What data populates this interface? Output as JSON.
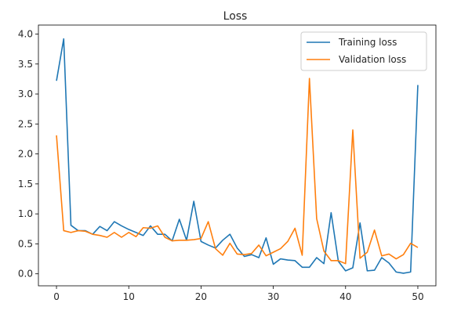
{
  "chart_data": {
    "type": "line",
    "title": "Loss",
    "xlabel": "",
    "ylabel": "",
    "xlim": [
      -2.5,
      52.5
    ],
    "ylim": [
      -0.2,
      4.15
    ],
    "x_ticks": [
      0,
      10,
      20,
      30,
      40,
      50
    ],
    "y_ticks": [
      0.0,
      0.5,
      1.0,
      1.5,
      2.0,
      2.5,
      3.0,
      3.5,
      4.0
    ],
    "x_tick_labels": [
      "0",
      "10",
      "20",
      "30",
      "40",
      "50"
    ],
    "y_tick_labels": [
      "0.0",
      "0.5",
      "1.0",
      "1.5",
      "2.0",
      "2.5",
      "3.0",
      "3.5",
      "4.0"
    ],
    "grid": false,
    "legend_position": "upper right",
    "x": [
      0,
      1,
      2,
      3,
      4,
      5,
      6,
      7,
      8,
      9,
      10,
      11,
      12,
      13,
      14,
      15,
      16,
      17,
      18,
      19,
      20,
      21,
      22,
      23,
      24,
      25,
      26,
      27,
      28,
      29,
      30,
      31,
      32,
      33,
      34,
      35,
      36,
      37,
      38,
      39,
      40,
      41,
      42,
      43,
      44,
      45,
      46,
      47,
      48,
      49,
      50
    ],
    "series": [
      {
        "name": "Training loss",
        "color": "#1f77b4",
        "values": [
          3.22,
          3.92,
          0.81,
          0.72,
          0.72,
          0.66,
          0.79,
          0.72,
          0.87,
          0.8,
          0.74,
          0.69,
          0.64,
          0.8,
          0.66,
          0.66,
          0.55,
          0.91,
          0.56,
          1.21,
          0.54,
          0.48,
          0.43,
          0.56,
          0.66,
          0.43,
          0.29,
          0.32,
          0.27,
          0.6,
          0.16,
          0.25,
          0.23,
          0.22,
          0.11,
          0.11,
          0.27,
          0.17,
          1.02,
          0.21,
          0.05,
          0.1,
          0.85,
          0.05,
          0.06,
          0.27,
          0.18,
          0.03,
          0.01,
          0.03,
          3.15
        ]
      },
      {
        "name": "Validation loss",
        "color": "#ff7f0e",
        "values": [
          2.31,
          0.72,
          0.69,
          0.72,
          0.71,
          0.66,
          0.64,
          0.61,
          0.69,
          0.61,
          0.69,
          0.62,
          0.77,
          0.76,
          0.8,
          0.61,
          0.55,
          0.56,
          0.56,
          0.57,
          0.59,
          0.87,
          0.42,
          0.31,
          0.51,
          0.33,
          0.32,
          0.34,
          0.48,
          0.3,
          0.36,
          0.42,
          0.54,
          0.76,
          0.31,
          3.26,
          0.92,
          0.38,
          0.22,
          0.22,
          0.17,
          2.4,
          0.26,
          0.36,
          0.73,
          0.3,
          0.33,
          0.25,
          0.32,
          0.51,
          0.44
        ]
      }
    ]
  }
}
